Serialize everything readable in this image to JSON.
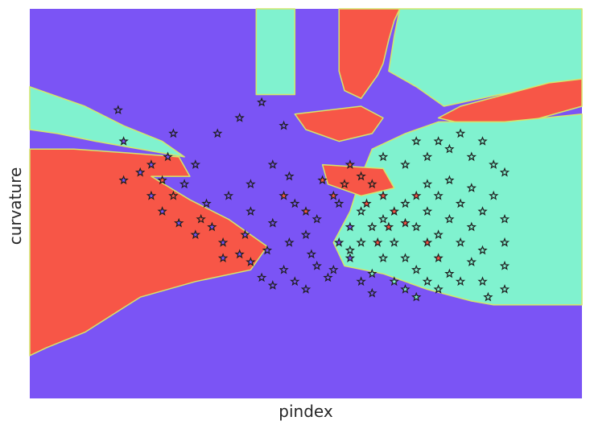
{
  "chart_data": {
    "type": "scatter",
    "title": "",
    "xlabel": "pindex",
    "ylabel": "curvature",
    "xlim": [
      0,
      1
    ],
    "ylim": [
      0,
      1
    ],
    "grid": false,
    "show_ticks": false,
    "colors": {
      "class_purple": "#7b54f5",
      "class_teal": "#80f2cf",
      "class_red": "#f75647",
      "boundary": "#d4e66b",
      "marker_edge": "#1e1e1e"
    },
    "decision_regions": [
      {
        "class": "teal",
        "polygon": [
          [
            0,
            0.8
          ],
          [
            0.04,
            0.78
          ],
          [
            0.1,
            0.75
          ],
          [
            0.17,
            0.7
          ],
          [
            0.24,
            0.66
          ],
          [
            0.28,
            0.62
          ],
          [
            0.2,
            0.64
          ],
          [
            0.12,
            0.66
          ],
          [
            0.05,
            0.68
          ],
          [
            0,
            0.69
          ]
        ]
      },
      {
        "class": "red",
        "polygon": [
          [
            0,
            0.64
          ],
          [
            0.08,
            0.64
          ],
          [
            0.18,
            0.63
          ],
          [
            0.27,
            0.62
          ],
          [
            0.29,
            0.57
          ],
          [
            0.22,
            0.57
          ],
          [
            0.29,
            0.51
          ],
          [
            0.36,
            0.46
          ],
          [
            0.43,
            0.39
          ],
          [
            0.4,
            0.33
          ],
          [
            0.3,
            0.3
          ],
          [
            0.2,
            0.26
          ],
          [
            0.1,
            0.17
          ],
          [
            0.03,
            0.13
          ],
          [
            0,
            0.11
          ]
        ]
      },
      {
        "class": "teal",
        "polygon": [
          [
            0.41,
            1
          ],
          [
            0.48,
            1
          ],
          [
            0.48,
            0.78
          ],
          [
            0.41,
            0.78
          ]
        ]
      },
      {
        "class": "red",
        "polygon": [
          [
            0.56,
            1
          ],
          [
            0.67,
            1
          ],
          [
            0.66,
            0.97
          ],
          [
            0.65,
            0.92
          ],
          [
            0.64,
            0.86
          ],
          [
            0.63,
            0.83
          ],
          [
            0.6,
            0.77
          ],
          [
            0.57,
            0.79
          ],
          [
            0.56,
            0.84
          ]
        ]
      },
      {
        "class": "teal",
        "polygon": [
          [
            0.67,
            1
          ],
          [
            1,
            1
          ],
          [
            1,
            0.82
          ],
          [
            0.95,
            0.8
          ],
          [
            0.85,
            0.78
          ],
          [
            0.75,
            0.75
          ],
          [
            0.7,
            0.8
          ],
          [
            0.65,
            0.84
          ],
          [
            0.66,
            0.93
          ]
        ]
      },
      {
        "class": "red",
        "polygon": [
          [
            1,
            0.82
          ],
          [
            0.94,
            0.81
          ],
          [
            0.86,
            0.78
          ],
          [
            0.78,
            0.75
          ],
          [
            0.74,
            0.72
          ],
          [
            0.8,
            0.7
          ],
          [
            0.9,
            0.71
          ],
          [
            1,
            0.75
          ]
        ]
      },
      {
        "class": "red",
        "polygon": [
          [
            0.48,
            0.73
          ],
          [
            0.6,
            0.75
          ],
          [
            0.64,
            0.72
          ],
          [
            0.62,
            0.68
          ],
          [
            0.56,
            0.66
          ],
          [
            0.5,
            0.69
          ]
        ]
      },
      {
        "class": "teal",
        "polygon": [
          [
            1,
            0.73
          ],
          [
            0.86,
            0.71
          ],
          [
            0.74,
            0.71
          ],
          [
            0.68,
            0.68
          ],
          [
            0.62,
            0.64
          ],
          [
            0.6,
            0.57
          ],
          [
            0.58,
            0.48
          ],
          [
            0.55,
            0.4
          ],
          [
            0.57,
            0.34
          ],
          [
            0.64,
            0.32
          ],
          [
            0.72,
            0.28
          ],
          [
            0.8,
            0.25
          ],
          [
            0.84,
            0.24
          ],
          [
            0.86,
            0.24
          ],
          [
            1,
            0.24
          ]
        ]
      },
      {
        "class": "red",
        "polygon": [
          [
            0.53,
            0.6
          ],
          [
            0.64,
            0.59
          ],
          [
            0.66,
            0.54
          ],
          [
            0.6,
            0.52
          ],
          [
            0.54,
            0.55
          ]
        ]
      }
    ],
    "series": [
      {
        "marker": "star",
        "points_by_class": {
          "purple": [
            [
              0.16,
              0.74
            ],
            [
              0.17,
              0.66
            ],
            [
              0.17,
              0.56
            ],
            [
              0.2,
              0.58
            ],
            [
              0.22,
              0.52
            ],
            [
              0.24,
              0.48
            ],
            [
              0.27,
              0.45
            ],
            [
              0.3,
              0.42
            ],
            [
              0.33,
              0.44
            ],
            [
              0.35,
              0.4
            ],
            [
              0.38,
              0.37
            ],
            [
              0.4,
              0.35
            ],
            [
              0.42,
              0.31
            ],
            [
              0.44,
              0.29
            ],
            [
              0.46,
              0.33
            ],
            [
              0.48,
              0.3
            ],
            [
              0.5,
              0.28
            ],
            [
              0.52,
              0.34
            ],
            [
              0.54,
              0.31
            ],
            [
              0.36,
              0.52
            ],
            [
              0.4,
              0.55
            ],
            [
              0.44,
              0.6
            ],
            [
              0.47,
              0.57
            ],
            [
              0.3,
              0.6
            ],
            [
              0.25,
              0.62
            ],
            [
              0.34,
              0.68
            ],
            [
              0.38,
              0.72
            ],
            [
              0.42,
              0.76
            ],
            [
              0.46,
              0.7
            ],
            [
              0.28,
              0.55
            ],
            [
              0.32,
              0.5
            ],
            [
              0.4,
              0.48
            ],
            [
              0.44,
              0.45
            ],
            [
              0.48,
              0.5
            ],
            [
              0.5,
              0.42
            ],
            [
              0.52,
              0.46
            ],
            [
              0.56,
              0.4
            ],
            [
              0.58,
              0.36
            ],
            [
              0.6,
              0.3
            ],
            [
              0.62,
              0.27
            ],
            [
              0.56,
              0.5
            ],
            [
              0.58,
              0.44
            ],
            [
              0.26,
              0.68
            ],
            [
              0.22,
              0.6
            ],
            [
              0.35,
              0.36
            ],
            [
              0.39,
              0.42
            ],
            [
              0.43,
              0.38
            ],
            [
              0.47,
              0.4
            ],
            [
              0.51,
              0.37
            ],
            [
              0.55,
              0.33
            ]
          ],
          "red": [
            [
              0.55,
              0.52
            ],
            [
              0.57,
              0.55
            ],
            [
              0.6,
              0.57
            ],
            [
              0.58,
              0.6
            ],
            [
              0.62,
              0.55
            ],
            [
              0.64,
              0.52
            ],
            [
              0.53,
              0.56
            ],
            [
              0.61,
              0.5
            ],
            [
              0.66,
              0.48
            ],
            [
              0.68,
              0.45
            ],
            [
              0.5,
              0.48
            ],
            [
              0.46,
              0.52
            ],
            [
              0.24,
              0.56
            ],
            [
              0.26,
              0.52
            ],
            [
              0.31,
              0.46
            ],
            [
              0.7,
              0.52
            ],
            [
              0.72,
              0.4
            ],
            [
              0.74,
              0.36
            ],
            [
              0.65,
              0.44
            ],
            [
              0.63,
              0.4
            ]
          ],
          "teal": [
            [
              0.6,
              0.48
            ],
            [
              0.64,
              0.46
            ],
            [
              0.68,
              0.5
            ],
            [
              0.7,
              0.44
            ],
            [
              0.72,
              0.48
            ],
            [
              0.74,
              0.42
            ],
            [
              0.76,
              0.46
            ],
            [
              0.78,
              0.4
            ],
            [
              0.8,
              0.44
            ],
            [
              0.82,
              0.38
            ],
            [
              0.66,
              0.4
            ],
            [
              0.68,
              0.36
            ],
            [
              0.7,
              0.33
            ],
            [
              0.72,
              0.3
            ],
            [
              0.74,
              0.28
            ],
            [
              0.76,
              0.32
            ],
            [
              0.78,
              0.3
            ],
            [
              0.8,
              0.35
            ],
            [
              0.82,
              0.3
            ],
            [
              0.83,
              0.26
            ],
            [
              0.64,
              0.36
            ],
            [
              0.62,
              0.32
            ],
            [
              0.66,
              0.3
            ],
            [
              0.68,
              0.28
            ],
            [
              0.7,
              0.26
            ],
            [
              0.72,
              0.55
            ],
            [
              0.74,
              0.52
            ],
            [
              0.76,
              0.56
            ],
            [
              0.78,
              0.5
            ],
            [
              0.8,
              0.54
            ],
            [
              0.82,
              0.48
            ],
            [
              0.84,
              0.52
            ],
            [
              0.86,
              0.46
            ],
            [
              0.86,
              0.4
            ],
            [
              0.86,
              0.34
            ],
            [
              0.86,
              0.28
            ],
            [
              0.84,
              0.6
            ],
            [
              0.8,
              0.62
            ],
            [
              0.76,
              0.64
            ],
            [
              0.72,
              0.62
            ],
            [
              0.68,
              0.6
            ],
            [
              0.64,
              0.62
            ],
            [
              0.82,
              0.66
            ],
            [
              0.78,
              0.68
            ],
            [
              0.74,
              0.66
            ],
            [
              0.7,
              0.66
            ],
            [
              0.86,
              0.58
            ],
            [
              0.6,
              0.4
            ],
            [
              0.62,
              0.44
            ],
            [
              0.58,
              0.38
            ]
          ]
        }
      }
    ]
  }
}
